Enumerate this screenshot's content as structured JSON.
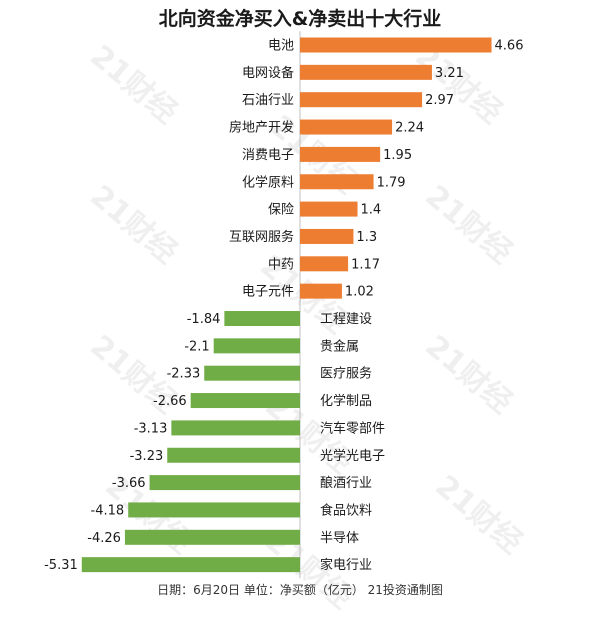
{
  "title": "北向资金净买入&净卖出十大行业",
  "footer": "日期：6月20日 单位：净买额（亿元） 21投资通制图",
  "watermark_text": "21财经",
  "colors": {
    "positive": "#ed7d31",
    "negative": "#70ad47",
    "baseline": "#bfbfbf",
    "text": "#1a1a1a"
  },
  "chart_data": {
    "type": "bar",
    "orientation": "horizontal",
    "title": "北向资金净买入&净卖出十大行业",
    "unit": "亿元",
    "categories": [
      "电池",
      "电网设备",
      "石油行业",
      "房地产开发",
      "消费电子",
      "化学原料",
      "保险",
      "互联网服务",
      "中药",
      "电子元件",
      "工程建设",
      "贵金属",
      "医疗服务",
      "化学制品",
      "汽车零部件",
      "光学光电子",
      "酿酒行业",
      "食品饮料",
      "半导体",
      "家电行业"
    ],
    "values": [
      4.66,
      3.21,
      2.97,
      2.24,
      1.95,
      1.79,
      1.4,
      1.3,
      1.17,
      1.02,
      -1.84,
      -2.1,
      -2.33,
      -2.66,
      -3.13,
      -3.23,
      -3.66,
      -4.18,
      -4.26,
      -5.31
    ],
    "value_labels": [
      "4.66",
      "3.21",
      "2.97",
      "2.24",
      "1.95",
      "1.79",
      "1.4",
      "1.3",
      "1.17",
      "1.02",
      "-1.84",
      "-2.1",
      "-2.33",
      "-2.66",
      "-3.13",
      "-3.23",
      "-3.66",
      "-4.18",
      "-4.26",
      "-5.31"
    ],
    "grid": false,
    "legend": "none"
  }
}
